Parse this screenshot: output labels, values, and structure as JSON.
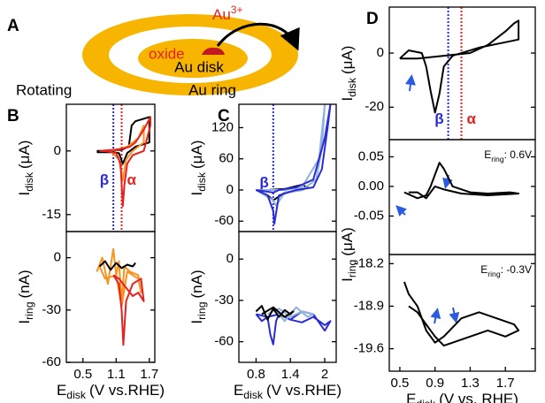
{
  "panel_labels": [
    "A",
    "B",
    "C",
    "D"
  ],
  "schematic": {
    "rotating": "Rotating",
    "oxide": "oxide",
    "disk": "Au disk",
    "ring": "Au ring",
    "ion": {
      "element": "Au",
      "charge": "3+"
    }
  },
  "chart_data": [
    {
      "type": "line",
      "xlim": [
        0.2,
        1.8
      ],
      "ylim": [
        -19,
        11
      ],
      "yticks": [
        0,
        -15
      ],
      "ylabel": {
        "symbol": "I",
        "subscript": "disk",
        "unit": "(μA)"
      },
      "vlines": [
        {
          "x": 1.05,
          "color": "#2b2bd8",
          "style": "dotted",
          "label": "β"
        },
        {
          "x": 1.2,
          "color": "#e8211f",
          "style": "dotted",
          "label": "α"
        }
      ],
      "series": [
        {
          "color": "#000000",
          "x": [
            0.75,
            1.0,
            1.2,
            1.33,
            1.38,
            1.45,
            1.7,
            1.7,
            1.45,
            1.3,
            1.22,
            1.15,
            1.0,
            0.75
          ],
          "values": [
            0,
            0,
            0.3,
            1,
            6,
            7,
            8,
            2,
            1,
            -0.5,
            -3,
            -0.5,
            -0.3,
            -0.3
          ]
        },
        {
          "color": "#f7931e",
          "x": [
            0.8,
            1.1,
            1.3,
            1.5,
            1.6,
            1.6,
            1.4,
            1.28,
            1.22,
            1.15,
            1.0,
            0.8
          ],
          "values": [
            0,
            0.2,
            1,
            3,
            6,
            2,
            0,
            -2,
            -7,
            -2,
            0,
            0
          ]
        },
        {
          "color": "#e8211f",
          "x": [
            0.8,
            1.0,
            1.2,
            1.35,
            1.45,
            1.6,
            1.72,
            1.72,
            1.6,
            1.4,
            1.3,
            1.25,
            1.22,
            1.18,
            1.1,
            0.9,
            0.8
          ],
          "values": [
            0,
            0.2,
            0.5,
            1,
            2,
            5,
            8,
            6,
            0,
            -1,
            -3,
            -8,
            -13,
            -3,
            -0.5,
            0,
            0
          ]
        }
      ]
    },
    {
      "type": "line",
      "xlim": [
        0.2,
        1.8
      ],
      "ylim": [
        -60,
        15
      ],
      "yticks": [
        0,
        -30,
        -60
      ],
      "xticks": [
        0.5,
        1.1,
        1.7
      ],
      "ylabel": {
        "symbol": "I",
        "subscript": "ring",
        "unit": "(nA)"
      },
      "xlabel": {
        "symbol": "E",
        "subscript": "disk",
        "unit": "(V vs.RHE)"
      },
      "series": [
        {
          "color": "#f7931e",
          "x": [
            0.75,
            0.85,
            0.95,
            1.05,
            1.1,
            1.15,
            1.2,
            1.25,
            1.35,
            1.5,
            1.55,
            1.5,
            1.4,
            1.3,
            1.25,
            1.2,
            1.1,
            0.9,
            0.8
          ],
          "values": [
            -8,
            0,
            -15,
            5,
            -10,
            -2,
            -25,
            -5,
            -8,
            -10,
            -20,
            -12,
            -10,
            -8,
            -18,
            -28,
            -10,
            -12,
            -5
          ]
        },
        {
          "color": "#e8211f",
          "x": [
            1.05,
            1.15,
            1.2,
            1.23,
            1.28,
            1.4,
            1.55,
            1.6,
            1.5,
            1.4,
            1.3,
            1.15,
            1.05
          ],
          "values": [
            -10,
            -15,
            -30,
            -50,
            -25,
            -15,
            -12,
            -25,
            -20,
            -22,
            -18,
            -12,
            -10
          ]
        },
        {
          "color": "#000000",
          "x": [
            0.8,
            0.9,
            1.0,
            1.1,
            1.2,
            1.3,
            1.4,
            1.45
          ],
          "values": [
            -5,
            -2,
            -7,
            -3,
            -6,
            -4,
            -5,
            -3
          ]
        }
      ]
    },
    {
      "type": "line",
      "xlim": [
        0.5,
        2.2
      ],
      "ylim": [
        -80,
        165
      ],
      "yticks": [
        120,
        60,
        0,
        -60
      ],
      "ylabel": {
        "symbol": "I",
        "subscript": "disk",
        "unit": "(μA)"
      },
      "vlines": [
        {
          "x": 1.1,
          "color": "#2b2bd8",
          "style": "dotted",
          "label": "β"
        }
      ],
      "series": [
        {
          "color": "#000000",
          "x": [
            0.8,
            1.0,
            1.1,
            1.3,
            1.6,
            1.7,
            1.6,
            1.3,
            1.0,
            0.8
          ],
          "values": [
            0,
            -10,
            -20,
            -5,
            0,
            5,
            10,
            2,
            0,
            0
          ]
        },
        {
          "color": "#8fb3dc",
          "x": [
            0.8,
            1.1,
            1.15,
            1.3,
            1.6,
            1.85,
            1.95,
            2.0,
            1.9,
            1.6,
            1.3,
            0.8
          ],
          "values": [
            0,
            -20,
            -30,
            -5,
            0,
            20,
            80,
            165,
            60,
            5,
            0,
            0
          ]
        },
        {
          "color": "#2b2bd8",
          "x": [
            0.8,
            1.0,
            1.1,
            1.12,
            1.2,
            1.5,
            1.8,
            1.95,
            2.05,
            2.1,
            2.0,
            1.8,
            1.5,
            1.2,
            1.1,
            0.8
          ],
          "values": [
            0,
            -10,
            -40,
            -65,
            -10,
            0,
            5,
            40,
            120,
            165,
            100,
            20,
            5,
            0,
            -5,
            0
          ]
        }
      ]
    },
    {
      "type": "line",
      "xlim": [
        0.5,
        2.2
      ],
      "ylim": [
        -75,
        20
      ],
      "yticks": [
        0,
        -30,
        -60
      ],
      "xticks": [
        0.8,
        1.4,
        2.0
      ],
      "ylabel": {
        "symbol": "I",
        "subscript": "ring",
        "unit": "(nA)"
      },
      "xlabel": {
        "symbol": "E",
        "subscript": "disk",
        "unit": "(V vs.RHE)"
      },
      "series": [
        {
          "color": "#2b2bd8",
          "x": [
            0.8,
            0.9,
            1.0,
            1.05,
            1.1,
            1.15,
            1.2,
            1.4,
            1.6,
            1.8,
            2.0,
            2.1,
            2.0,
            1.8,
            1.6,
            1.4,
            1.2,
            1.0,
            0.8
          ],
          "values": [
            -40,
            -45,
            -42,
            -55,
            -62,
            -45,
            -40,
            -44,
            -46,
            -42,
            -48,
            -45,
            -52,
            -40,
            -38,
            -44,
            -40,
            -42,
            -40
          ]
        },
        {
          "color": "#8fb3dc",
          "x": [
            0.9,
            1.1,
            1.3,
            1.5,
            1.7,
            1.8,
            1.6,
            1.4,
            1.2,
            1.0
          ],
          "values": [
            -40,
            -35,
            -45,
            -35,
            -42,
            -40,
            -38,
            -42,
            -36,
            -40
          ]
        },
        {
          "color": "#000000",
          "x": [
            0.8,
            0.9,
            1.0,
            1.1,
            1.2,
            1.3,
            1.4,
            1.45,
            1.3,
            1.1,
            0.9
          ],
          "values": [
            -38,
            -34,
            -44,
            -36,
            -42,
            -37,
            -40,
            -38,
            -42,
            -35,
            -40
          ]
        }
      ]
    },
    {
      "type": "line",
      "xlim": [
        0.38,
        2.04
      ],
      "ylim": [
        -32,
        17
      ],
      "yticks": [
        0,
        -20
      ],
      "ylabel": {
        "symbol": "I",
        "subscript": "disk",
        "unit": "(μA)"
      },
      "vlines": [
        {
          "x": 1.05,
          "color": "#2b2bd8",
          "style": "dotted",
          "label": "β"
        },
        {
          "x": 1.2,
          "color": "#e8211f",
          "style": "dotted",
          "label": "α"
        }
      ],
      "series": [
        {
          "color": "#000000",
          "x": [
            0.5,
            0.7,
            1.0,
            1.3,
            1.5,
            1.7,
            1.8,
            1.85,
            1.85,
            1.7,
            1.4,
            1.1,
            1.0,
            0.95,
            0.9,
            0.85,
            0.8,
            0.75,
            0.6,
            0.5
          ],
          "values": [
            -2,
            -2,
            -1,
            0,
            3,
            8,
            11,
            12,
            5,
            4,
            2,
            -1,
            -5,
            -15,
            -22,
            -14,
            -5,
            0,
            1,
            -2
          ]
        }
      ]
    },
    {
      "type": "line",
      "xlim": [
        0.38,
        2.04
      ],
      "ylim": [
        -0.115,
        0.079
      ],
      "yticks": [
        0.05,
        {
          "value": 0,
          "label": "0.00"
        },
        -0.05
      ],
      "annotation": {
        "symbol": "E",
        "subscript": "ring",
        "rest": ": 0.6V"
      },
      "series": [
        {
          "color": "#000000",
          "x": [
            0.55,
            0.7,
            0.8,
            0.85,
            0.9,
            0.95,
            1.0,
            1.1,
            1.3,
            1.5,
            1.75,
            1.85,
            1.75,
            1.5,
            1.2,
            1.0,
            0.9,
            0.8,
            0.7,
            0.6
          ],
          "values": [
            -0.01,
            -0.02,
            -0.015,
            0,
            0.02,
            0.04,
            0.03,
            0,
            -0.01,
            -0.012,
            -0.01,
            -0.012,
            -0.013,
            -0.015,
            -0.012,
            -0.005,
            0,
            -0.02,
            -0.01,
            -0.01
          ]
        }
      ]
    },
    {
      "type": "line",
      "xlim": [
        0.38,
        2.04
      ],
      "ylim": [
        -19.97,
        -18.05
      ],
      "yticks": [
        -18.2,
        -18.9,
        -19.6
      ],
      "xticks": [
        0.5,
        0.9,
        1.3,
        1.7
      ],
      "ylabel": {
        "symbol": "I",
        "subscript": "ring",
        "unit": "(μA)"
      },
      "xlabel": {
        "symbol": "E",
        "subscript": "disk",
        "unit": "(V vs. RHE)"
      },
      "annotation": {
        "symbol": "E",
        "subscript": "ring",
        "rest": ": -0.3V"
      },
      "series": [
        {
          "color": "#000000",
          "x": [
            0.55,
            0.6,
            0.7,
            0.8,
            0.9,
            1.0,
            1.2,
            1.4,
            1.6,
            1.8,
            1.85,
            1.7,
            1.5,
            1.3,
            1.1,
            1.0,
            0.9,
            0.8,
            0.7,
            0.6
          ],
          "values": [
            -18.5,
            -18.7,
            -18.9,
            -19.3,
            -19.5,
            -19.4,
            -19.1,
            -19.0,
            -19.1,
            -19.2,
            -19.3,
            -19.4,
            -19.3,
            -19.4,
            -19.5,
            -19.55,
            -19.4,
            -19.2,
            -19.0,
            -18.9
          ]
        }
      ]
    }
  ]
}
